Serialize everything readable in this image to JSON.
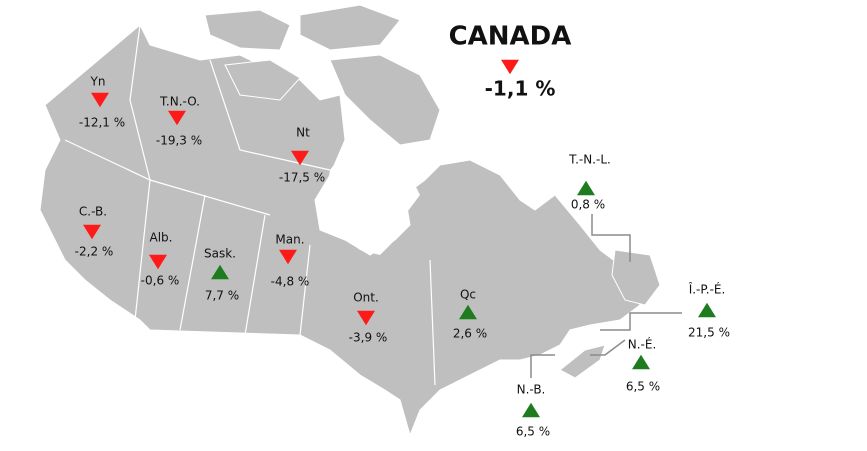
{
  "title": "CANADA",
  "total": {
    "change": "-1,1 %",
    "trend": "down"
  },
  "regions": [
    {
      "label": "Yn",
      "change": "-12,1 %",
      "trend": "down"
    },
    {
      "label": "T.N.-O.",
      "change": "-19,3 %",
      "trend": "down"
    },
    {
      "label": "Nt",
      "change": "-17,5 %",
      "trend": "down"
    },
    {
      "label": "C.-B.",
      "change": "-2,2 %",
      "trend": "down"
    },
    {
      "label": "Alb.",
      "change": "-0,6 %",
      "trend": "down"
    },
    {
      "label": "Sask.",
      "change": "7,7 %",
      "trend": "up"
    },
    {
      "label": "Man.",
      "change": "-4,8 %",
      "trend": "down"
    },
    {
      "label": "Ont.",
      "change": "-3,9 %",
      "trend": "down"
    },
    {
      "label": "Qc",
      "change": "2,6 %",
      "trend": "up"
    },
    {
      "label": "T.-N.-L.",
      "change": "0,8 %",
      "trend": "up"
    },
    {
      "label": "Î.-P.-É.",
      "change": "21,5 %",
      "trend": "up"
    },
    {
      "label": "N.-É.",
      "change": "6,5 %",
      "trend": "up"
    },
    {
      "label": "N.-B.",
      "change": "6,5 %",
      "trend": "up"
    }
  ],
  "colors": {
    "up": "#1e7b1e",
    "down": "#ff1a1a"
  }
}
